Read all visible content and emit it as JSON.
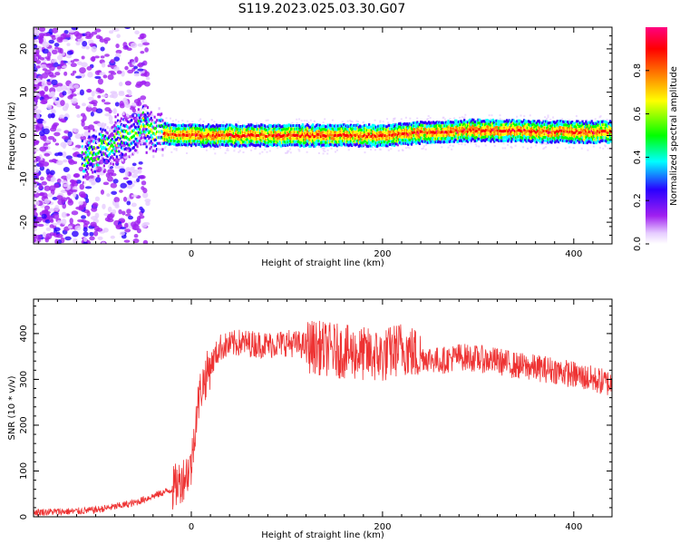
{
  "figure": {
    "title": "S119.2023.025.03.30.G07"
  },
  "chart_data": [
    {
      "type": "heatmap",
      "xlabel": "Height of straight line (km)",
      "ylabel": "Frequency (Hz)",
      "xlim": [
        -165,
        440
      ],
      "ylim": [
        -25,
        25
      ],
      "x_ticks": [
        0,
        200,
        400
      ],
      "y_ticks": [
        -20,
        -10,
        0,
        10,
        20
      ],
      "colorbar": {
        "label": "Normalized spectral amplitude",
        "range": [
          0.0,
          1.0
        ],
        "ticks": [
          0.0,
          0.2,
          0.4,
          0.6,
          0.8
        ],
        "colormap": [
          "#ffffff",
          "#e6ccff",
          "#a020f0",
          "#2a00ff",
          "#00ffff",
          "#00ff00",
          "#ffff00",
          "#ff8000",
          "#ff0000",
          "#ff0080"
        ]
      },
      "ridge": [
        {
          "x": -110,
          "freq": -5
        },
        {
          "x": -80,
          "freq": -1
        },
        {
          "x": -50,
          "freq": 2.5
        },
        {
          "x": -40,
          "freq": 0
        },
        {
          "x": -30,
          "freq": 0.5
        },
        {
          "x": 0,
          "freq": 0
        },
        {
          "x": 100,
          "freq": 0
        },
        {
          "x": 200,
          "freq": 0
        },
        {
          "x": 250,
          "freq": 0.8
        },
        {
          "x": 300,
          "freq": 1.2
        },
        {
          "x": 400,
          "freq": 0.8
        },
        {
          "x": 440,
          "freq": 0.8
        }
      ]
    },
    {
      "type": "line",
      "xlabel": "Height of straight line (km)",
      "ylabel": "SNR (10 * v/v)",
      "xlim": [
        -165,
        440
      ],
      "ylim": [
        0,
        475
      ],
      "x_ticks": [
        0,
        200,
        400
      ],
      "y_ticks": [
        0,
        100,
        200,
        300,
        400
      ],
      "series": [
        {
          "color": "#ee3333",
          "x": [
            -165,
            -120,
            -100,
            -80,
            -60,
            -40,
            -20,
            -10,
            0,
            5,
            10,
            20,
            30,
            50,
            80,
            100,
            130,
            160,
            180,
            200,
            220,
            240,
            260,
            280,
            300,
            320,
            340,
            360,
            380,
            400,
            420,
            440
          ],
          "y": [
            10,
            12,
            15,
            22,
            30,
            45,
            60,
            80,
            110,
            220,
            280,
            330,
            370,
            380,
            375,
            380,
            370,
            360,
            355,
            350,
            370,
            350,
            340,
            350,
            345,
            340,
            330,
            325,
            320,
            310,
            300,
            290
          ]
        }
      ]
    }
  ]
}
